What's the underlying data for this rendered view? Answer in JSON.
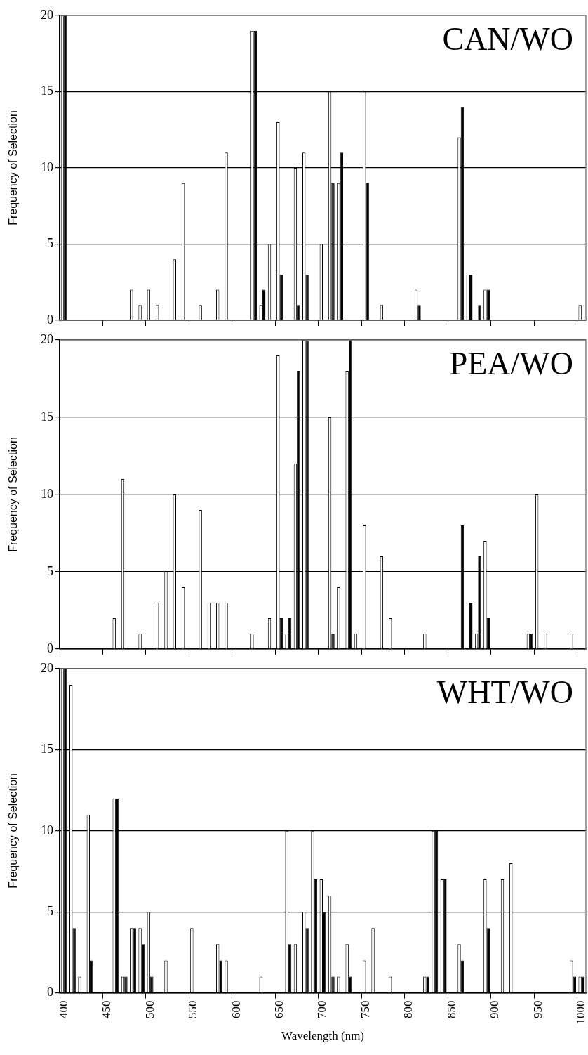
{
  "chart_data": [
    {
      "type": "bar",
      "title": "CAN/WO",
      "ylabel": "Frequency of Selection",
      "categories": [
        "400",
        null,
        null,
        null,
        null,
        "450",
        null,
        null,
        null,
        null,
        "500",
        null,
        null,
        null,
        null,
        "550",
        null,
        null,
        null,
        null,
        "600",
        null,
        null,
        null,
        null,
        "650",
        null,
        null,
        null,
        null,
        "700",
        null,
        null,
        null,
        null,
        "750",
        null,
        null,
        null,
        null,
        "800",
        null,
        null,
        null,
        null,
        "850",
        null,
        null,
        null,
        null,
        "900",
        null,
        null,
        null,
        null,
        "950",
        null,
        null,
        null,
        null,
        "1000"
      ],
      "series": [
        {
          "color": "#ffffff",
          "values": [
            20,
            0,
            0,
            0,
            0,
            0,
            0,
            0,
            2,
            1,
            2,
            1,
            0,
            4,
            9,
            0,
            1,
            0,
            2,
            11,
            0,
            0,
            19,
            1,
            5,
            13,
            0,
            10,
            11,
            0,
            5,
            15,
            9,
            0,
            0,
            15,
            0,
            1,
            0,
            0,
            0,
            2,
            0,
            0,
            0,
            0,
            12,
            3,
            0,
            2,
            0,
            0,
            0,
            0,
            0,
            0,
            0,
            0,
            0,
            0,
            1
          ]
        },
        {
          "color": "#000000",
          "values": [
            20,
            0,
            0,
            0,
            0,
            0,
            0,
            0,
            0,
            0,
            0,
            0,
            0,
            0,
            0,
            0,
            0,
            0,
            0,
            0,
            0,
            0,
            19,
            2,
            0,
            3,
            0,
            1,
            3,
            0,
            0,
            9,
            11,
            0,
            0,
            9,
            0,
            0,
            0,
            0,
            0,
            1,
            0,
            0,
            0,
            0,
            14,
            3,
            1,
            2,
            0,
            0,
            0,
            0,
            0,
            0,
            0,
            0,
            0,
            0,
            0
          ]
        }
      ],
      "ylim": [
        0,
        20
      ],
      "yticks": [
        0,
        5,
        10,
        15,
        20
      ],
      "grid": "y",
      "tick_labels": "y"
    },
    {
      "type": "bar",
      "title": "PEA/WO",
      "ylabel": "Frequency of Selection",
      "categories": [
        "400",
        null,
        null,
        null,
        null,
        "450",
        null,
        null,
        null,
        null,
        "500",
        null,
        null,
        null,
        null,
        "550",
        null,
        null,
        null,
        null,
        "600",
        null,
        null,
        null,
        null,
        "650",
        null,
        null,
        null,
        null,
        "700",
        null,
        null,
        null,
        null,
        "750",
        null,
        null,
        null,
        null,
        "800",
        null,
        null,
        null,
        null,
        "850",
        null,
        null,
        null,
        null,
        "900",
        null,
        null,
        null,
        null,
        "950",
        null,
        null,
        null,
        null,
        "1000"
      ],
      "series": [
        {
          "color": "#ffffff",
          "values": [
            0,
            0,
            0,
            0,
            0,
            0,
            2,
            11,
            0,
            1,
            0,
            3,
            5,
            10,
            4,
            0,
            9,
            3,
            3,
            3,
            0,
            0,
            1,
            0,
            2,
            19,
            1,
            12,
            20,
            0,
            0,
            15,
            4,
            18,
            1,
            8,
            0,
            6,
            2,
            0,
            0,
            0,
            1,
            0,
            0,
            0,
            0,
            0,
            1,
            7,
            0,
            0,
            0,
            0,
            1,
            10,
            1,
            0,
            0,
            1,
            0
          ]
        },
        {
          "color": "#000000",
          "values": [
            0,
            0,
            0,
            0,
            0,
            0,
            0,
            0,
            0,
            0,
            0,
            0,
            0,
            0,
            0,
            0,
            0,
            0,
            0,
            0,
            0,
            0,
            0,
            0,
            0,
            2,
            2,
            18,
            20,
            0,
            0,
            1,
            0,
            20,
            0,
            0,
            0,
            0,
            0,
            0,
            0,
            0,
            0,
            0,
            0,
            0,
            8,
            3,
            6,
            2,
            0,
            0,
            0,
            0,
            1,
            0,
            0,
            0,
            0,
            0,
            0
          ]
        }
      ],
      "ylim": [
        0,
        20
      ],
      "yticks": [
        0,
        5,
        10,
        15,
        20
      ],
      "grid": "y",
      "tick_labels": "y"
    },
    {
      "type": "bar",
      "title": "WHT/WO",
      "ylabel": "Frequency of Selection",
      "xlabel": "Wavelength (nm)",
      "categories": [
        "400",
        null,
        null,
        null,
        null,
        "450",
        null,
        null,
        null,
        null,
        "500",
        null,
        null,
        null,
        null,
        "550",
        null,
        null,
        null,
        null,
        "600",
        null,
        null,
        null,
        null,
        "650",
        null,
        null,
        null,
        null,
        "700",
        null,
        null,
        null,
        null,
        "750",
        null,
        null,
        null,
        null,
        "800",
        null,
        null,
        null,
        null,
        "850",
        null,
        null,
        null,
        null,
        "900",
        null,
        null,
        null,
        null,
        "950",
        null,
        null,
        null,
        null,
        "1000"
      ],
      "series": [
        {
          "color": "#ffffff",
          "values": [
            20,
            19,
            1,
            11,
            0,
            0,
            12,
            1,
            4,
            4,
            5,
            0,
            2,
            0,
            0,
            4,
            0,
            0,
            3,
            2,
            0,
            0,
            0,
            1,
            0,
            0,
            10,
            3,
            5,
            10,
            7,
            6,
            1,
            3,
            0,
            2,
            4,
            0,
            1,
            0,
            0,
            0,
            1,
            10,
            7,
            0,
            3,
            0,
            0,
            7,
            0,
            7,
            8,
            0,
            0,
            0,
            0,
            0,
            0,
            2,
            1
          ]
        },
        {
          "color": "#000000",
          "values": [
            20,
            4,
            0,
            2,
            0,
            0,
            12,
            1,
            4,
            3,
            1,
            0,
            0,
            0,
            0,
            0,
            0,
            0,
            2,
            0,
            0,
            0,
            0,
            0,
            0,
            0,
            3,
            0,
            4,
            7,
            5,
            1,
            0,
            1,
            0,
            0,
            0,
            0,
            0,
            0,
            0,
            0,
            1,
            10,
            7,
            0,
            2,
            0,
            0,
            4,
            0,
            0,
            0,
            0,
            0,
            0,
            0,
            0,
            0,
            1,
            1
          ]
        }
      ],
      "ylim": [
        0,
        20
      ],
      "yticks": [
        0,
        5,
        10,
        15,
        20
      ],
      "grid": "y"
    }
  ]
}
